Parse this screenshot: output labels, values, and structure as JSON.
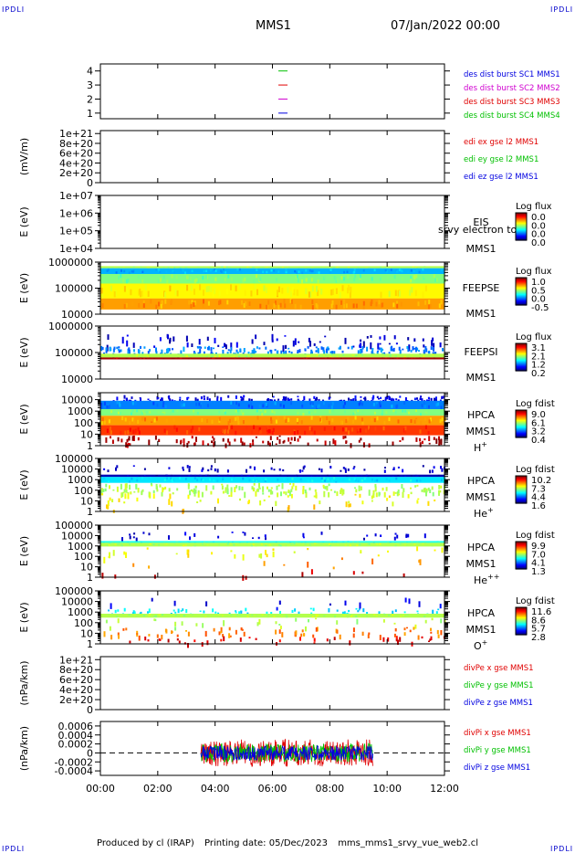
{
  "header": {
    "title": "MMS1",
    "date": "07/Jan/2022 00:00",
    "corner_label": "IPDLI"
  },
  "footer": {
    "produced_by": "Produced by cl (IRAP)",
    "printing_date": "Printing date: 05/Dec/2023",
    "file": "mms_mms1_srvy_vue_web2.cl"
  },
  "colors": {
    "red": "#e00000",
    "green": "#00c000",
    "blue": "#0000e0",
    "magenta": "#d000d0",
    "dark_red": "#8b0000"
  },
  "chart_data": [
    {
      "type": "line",
      "name": "burst-indicator",
      "x_range": [
        "00:00",
        "12:00"
      ],
      "y_ticks": [
        "1",
        "2",
        "3",
        "4"
      ],
      "ylim": [
        0.6,
        4.5
      ],
      "series": [
        {
          "name": "des dist burst SC1 MMS1",
          "color": "#0000e0",
          "y": 1
        },
        {
          "name": "des dist burst SC2 MMS2",
          "color": "#d000d0",
          "y": 2
        },
        {
          "name": "des dist burst SC3 MMS3",
          "color": "#e00000",
          "y": 3
        },
        {
          "name": "des dist burst SC4 MMS4",
          "color": "#00c000",
          "y": 4
        }
      ],
      "marker_time": "06:22"
    },
    {
      "type": "line",
      "name": "edi-efield",
      "ylabel": "(mV/m)",
      "y_ticks": [
        "0",
        "2e+20",
        "4e+20",
        "6e+20",
        "8e+20",
        "1e+21"
      ],
      "ylim": [
        0,
        1.06e+21
      ],
      "zero_line": true,
      "series": [
        {
          "name": "edi ex gse l2 MMS1",
          "color": "#e00000"
        },
        {
          "name": "edi ey gse l2 MMS1",
          "color": "#00c000"
        },
        {
          "name": "edi ez gse l2 MMS1",
          "color": "#0000e0"
        }
      ]
    },
    {
      "type": "heatmap",
      "name": "eis",
      "ylabel": "E (eV)",
      "y_ticks": [
        "1e+04",
        "1e+05",
        "1e+06",
        "1e+07"
      ],
      "log": true,
      "ylim": [
        10000,
        10000000
      ],
      "labels": [
        "EIS",
        "MMS1"
      ],
      "overlay_text": "srvy electron to",
      "colorbar": {
        "title": "Log flux",
        "ticks": [
          "0.0",
          "0.0",
          "0.0",
          "0.0"
        ]
      },
      "bands": []
    },
    {
      "type": "heatmap",
      "name": "feepse",
      "ylabel": "E (eV)",
      "y_ticks": [
        "10000",
        "100000",
        "1000000"
      ],
      "log": true,
      "ylim": [
        10000,
        1000000
      ],
      "labels": [
        "FEEPSE",
        "MMS1"
      ],
      "colorbar": {
        "title": "Log flux",
        "ticks": [
          "1.0",
          "0.5",
          "0.0",
          "-0.5"
        ]
      },
      "x_range": [
        "00:00",
        "12:00"
      ],
      "bands": [
        {
          "e_min": 580000,
          "e_max": 700000,
          "level": 0.55,
          "density": 1.0
        },
        {
          "e_min": 350000,
          "e_max": 580000,
          "level": 0.3,
          "density": 1.0
        },
        {
          "e_min": 150000,
          "e_max": 350000,
          "level": 0.5,
          "density": 1.0
        },
        {
          "e_min": 40000,
          "e_max": 150000,
          "level": 0.63,
          "density": 1.0
        },
        {
          "e_min": 15000,
          "e_max": 40000,
          "level": 0.72,
          "density": 1.0
        }
      ]
    },
    {
      "type": "heatmap",
      "name": "feepsi",
      "ylabel": "E (eV)",
      "y_ticks": [
        "10000",
        "100000",
        "1000000"
      ],
      "log": true,
      "ylim": [
        10000,
        1000000
      ],
      "labels": [
        "FEEPSI",
        "MMS1"
      ],
      "colorbar": {
        "title": "Log flux",
        "ticks": [
          "3.1",
          "2.1",
          "1.2",
          "0.2"
        ]
      },
      "x_range": [
        "00:00",
        "12:00"
      ],
      "bands": [
        {
          "e_min": 180000,
          "e_max": 500000,
          "level": 0.08,
          "density": 0.35
        },
        {
          "e_min": 90000,
          "e_max": 180000,
          "level": 0.25,
          "density": 0.95
        },
        {
          "e_min": 65000,
          "e_max": 90000,
          "level": 0.55,
          "density": 1.0
        },
        {
          "e_min": 55000,
          "e_max": 65000,
          "level": 0.97,
          "density": 1.0
        }
      ]
    },
    {
      "type": "heatmap",
      "name": "hpca-h",
      "ylabel": "E (eV)",
      "y_ticks": [
        "1",
        "10",
        "100",
        "1000",
        "10000"
      ],
      "log": true,
      "ylim": [
        1,
        40000
      ],
      "labels": [
        "HPCA",
        "MMS1",
        "H+"
      ],
      "species": {
        "base": "H",
        "sup": "+"
      },
      "colorbar": {
        "title": "Log fdist",
        "ticks": [
          "9.0",
          "6.1",
          "3.2",
          "0.4"
        ]
      },
      "x_range": [
        "00:00",
        "12:00"
      ],
      "bands": [
        {
          "e_min": 8000,
          "e_max": 25000,
          "level": 0.1,
          "density": 0.8
        },
        {
          "e_min": 1500,
          "e_max": 8000,
          "level": 0.25,
          "density": 1.0
        },
        {
          "e_min": 400,
          "e_max": 1500,
          "level": 0.5,
          "density": 1.0
        },
        {
          "e_min": 60,
          "e_max": 400,
          "level": 0.72,
          "density": 1.0
        },
        {
          "e_min": 8,
          "e_max": 60,
          "level": 0.82,
          "density": 1.0
        },
        {
          "e_min": 1.5,
          "e_max": 8,
          "level": 0.95,
          "density": 0.5
        }
      ]
    },
    {
      "type": "heatmap",
      "name": "hpca-he",
      "ylabel": "E (eV)",
      "y_ticks": [
        "1",
        "10",
        "100",
        "1000",
        "10000",
        "100000"
      ],
      "log": true,
      "ylim": [
        1,
        100000
      ],
      "labels": [
        "HPCA",
        "MMS1",
        "He+"
      ],
      "species": {
        "base": "He",
        "sup": "+"
      },
      "colorbar": {
        "title": "Log fdist",
        "ticks": [
          "10.2",
          "7.3",
          "4.4",
          "1.6"
        ]
      },
      "x_range": [
        "00:00",
        "12:00"
      ],
      "bands": [
        {
          "e_min": 8000,
          "e_max": 25000,
          "level": 0.08,
          "density": 0.3
        },
        {
          "e_min": 1800,
          "e_max": 3000,
          "level": 0.05,
          "density": 1.0
        },
        {
          "e_min": 500,
          "e_max": 1800,
          "level": 0.35,
          "density": 1.0
        },
        {
          "e_min": 60,
          "e_max": 500,
          "level": 0.55,
          "density": 0.9
        },
        {
          "e_min": 8,
          "e_max": 60,
          "level": 0.62,
          "density": 0.25
        },
        {
          "e_min": 1.2,
          "e_max": 8,
          "level": 0.7,
          "density": 0.05
        }
      ]
    },
    {
      "type": "heatmap",
      "name": "hpca-hepp",
      "ylabel": "E (eV)",
      "y_ticks": [
        "1",
        "10",
        "100",
        "1000",
        "10000",
        "100000"
      ],
      "log": true,
      "ylim": [
        1,
        100000
      ],
      "labels": [
        "HPCA",
        "MMS1",
        "He++"
      ],
      "species": {
        "base": "He",
        "sup": "++"
      },
      "colorbar": {
        "title": "Log fdist",
        "ticks": [
          "9.9",
          "7.0",
          "4.1",
          "1.3"
        ]
      },
      "x_range": [
        "00:00",
        "12:00"
      ],
      "bands": [
        {
          "e_min": 6000,
          "e_max": 25000,
          "level": 0.08,
          "density": 0.18
        },
        {
          "e_min": 2000,
          "e_max": 3000,
          "level": 0.4,
          "density": 1.0
        },
        {
          "e_min": 900,
          "e_max": 2000,
          "level": 0.55,
          "density": 1.0
        },
        {
          "e_min": 80,
          "e_max": 900,
          "level": 0.62,
          "density": 0.15
        },
        {
          "e_min": 10,
          "e_max": 80,
          "level": 0.75,
          "density": 0.05
        },
        {
          "e_min": 1.2,
          "e_max": 10,
          "level": 0.92,
          "density": 0.05
        }
      ]
    },
    {
      "type": "heatmap",
      "name": "hpca-o",
      "ylabel": "E (eV)",
      "y_ticks": [
        "1",
        "10",
        "100",
        "1000",
        "10000",
        "100000"
      ],
      "log": true,
      "ylim": [
        1,
        100000
      ],
      "labels": [
        "HPCA",
        "MMS1",
        "O+"
      ],
      "species": {
        "base": "O",
        "sup": "+"
      },
      "colorbar": {
        "title": "Log fdist",
        "ticks": [
          "11.6",
          "8.6",
          "5.7",
          "2.8"
        ]
      },
      "x_range": [
        "00:00",
        "12:00"
      ],
      "bands": [
        {
          "e_min": 2500,
          "e_max": 25000,
          "level": 0.1,
          "density": 0.07
        },
        {
          "e_min": 700,
          "e_max": 2500,
          "level": 0.35,
          "density": 0.35
        },
        {
          "e_min": 300,
          "e_max": 700,
          "level": 0.55,
          "density": 1.0
        },
        {
          "e_min": 40,
          "e_max": 300,
          "level": 0.55,
          "density": 0.15
        },
        {
          "e_min": 6,
          "e_max": 40,
          "level": 0.75,
          "density": 0.35
        },
        {
          "e_min": 1.2,
          "e_max": 6,
          "level": 0.9,
          "density": 0.2
        }
      ]
    },
    {
      "type": "line",
      "name": "divpe",
      "ylabel": "(nPa/km)",
      "y_ticks": [
        "0",
        "2e+20",
        "4e+20",
        "6e+20",
        "8e+20",
        "1e+21"
      ],
      "ylim": [
        0,
        1.06e+21
      ],
      "zero_line": true,
      "series": [
        {
          "name": "divPe x gse MMS1",
          "color": "#e00000"
        },
        {
          "name": "divPe y gse MMS1",
          "color": "#00c000"
        },
        {
          "name": "divPe z gse MMS1",
          "color": "#0000e0"
        }
      ]
    },
    {
      "type": "line",
      "name": "divpi",
      "ylabel": "(nPa/km)",
      "y_ticks": [
        "-0.0004",
        "-0.0002",
        "0",
        "0.0002",
        "0.0004",
        "0.0006"
      ],
      "ylim": [
        -0.0005,
        0.0007
      ],
      "zero_line": true,
      "data_time_range": [
        "03:30",
        "09:30"
      ],
      "amplitude": 0.0003,
      "series": [
        {
          "name": "divPi x gse MMS1",
          "color": "#e00000"
        },
        {
          "name": "divPi y gse MMS1",
          "color": "#00c000"
        },
        {
          "name": "divPi z gse MMS1",
          "color": "#0000e0"
        }
      ]
    }
  ],
  "time_axis": {
    "ticks": [
      "00:00",
      "02:00",
      "04:00",
      "06:00",
      "08:00",
      "10:00",
      "12:00"
    ]
  }
}
